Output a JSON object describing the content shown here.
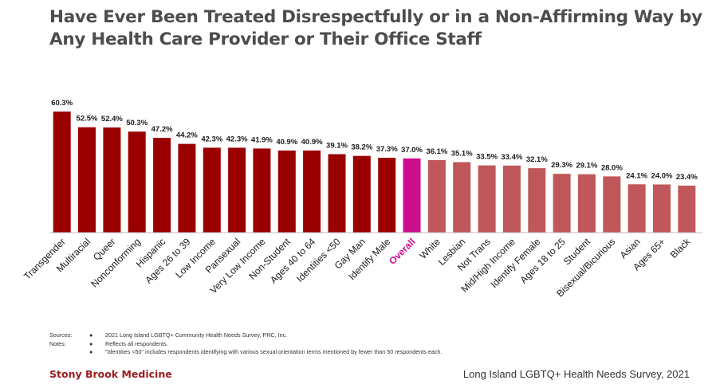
{
  "title_lines": [
    "Have Ever Been Treated Disrespectfully or in a Non-Affirming Way by",
    "Any Health Care Provider or Their Office Staff"
  ],
  "colors": {
    "title": "#4d4d4d",
    "dark_bar": "#9b0000",
    "overall_bar": "#cc0e8c",
    "light_bar": "#c0575a",
    "axis": "#bfbfbf",
    "brand": "#9b1b1f"
  },
  "chart_data": {
    "type": "bar",
    "categories": [
      "Transgender",
      "Multiracial",
      "Queer",
      "Nonconforming",
      "Hispanic",
      "Ages 26 to 39",
      "Low Income",
      "Pansexual",
      "Very Low Income",
      "Non-Student",
      "Ages 40 to 64",
      "Identities <50",
      "Gay Man",
      "Identify Male",
      "Overall",
      "White",
      "Lesbian",
      "Not Trans",
      "Mid/High Income",
      "Identify Female",
      "Ages 18 to 25",
      "Student",
      "Bisexual/Bicurious",
      "Asian",
      "Ages 65+",
      "Black"
    ],
    "values": [
      60.3,
      52.5,
      52.4,
      50.3,
      47.2,
      44.2,
      42.3,
      42.3,
      41.9,
      40.9,
      40.9,
      39.1,
      38.2,
      37.3,
      37.0,
      36.1,
      35.1,
      33.5,
      33.4,
      32.1,
      29.3,
      29.1,
      28.0,
      24.1,
      24.0,
      23.4
    ],
    "value_labels": [
      "60.3%",
      "52.5%",
      "52.4%",
      "50.3%",
      "47.2%",
      "44.2%",
      "42.3%",
      "42.3%",
      "41.9%",
      "40.9%",
      "40.9%",
      "39.1%",
      "38.2%",
      "37.3%",
      "37.0%",
      "36.1%",
      "35.1%",
      "33.5%",
      "33.4%",
      "32.1%",
      "29.3%",
      "29.1%",
      "28.0%",
      "24.1%",
      "24.0%",
      "23.4%"
    ],
    "groups": [
      "above",
      "above",
      "above",
      "above",
      "above",
      "above",
      "above",
      "above",
      "above",
      "above",
      "above",
      "above",
      "above",
      "above",
      "overall",
      "below",
      "below",
      "below",
      "below",
      "below",
      "below",
      "below",
      "below",
      "below",
      "below",
      "below"
    ],
    "ylim": [
      0,
      65
    ],
    "grid": false,
    "legend": "none"
  },
  "notes": {
    "sources_label": "Sources:",
    "notes_label": "Notes:",
    "bullet": "●",
    "source_1": "2021 Long Island LGBTQ+ Community Health Needs Survey, PRC, Inc.",
    "note_1": "Reflects all respondents.",
    "note_2": "\"Identities <50\" includes respondents identifying with various sexual orientation terms mentioned by fewer than 50 respondents each."
  },
  "footer": {
    "left": "Stony Brook Medicine",
    "right": "Long Island LGBTQ+ Health Needs Survey, 2021"
  }
}
